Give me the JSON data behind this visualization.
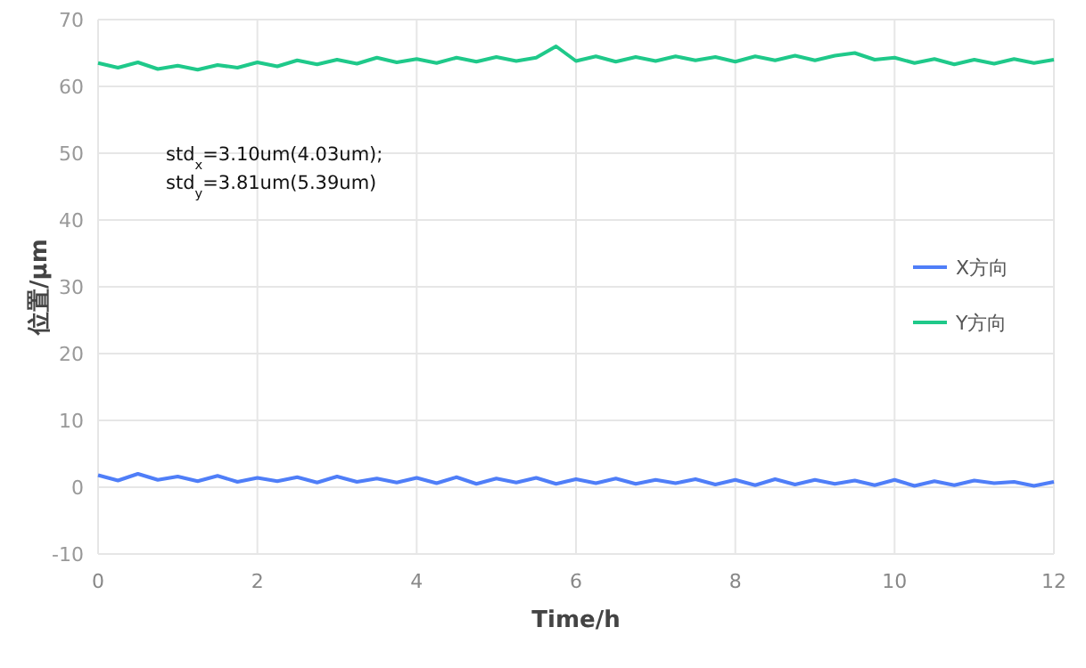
{
  "chart_data": {
    "type": "line",
    "xlabel": "Time/h",
    "ylabel": "位置/μm",
    "annotations": [
      "std$_{x}$=3.10um(4.03um);",
      "std$_{y}$=3.81um(5.39um)"
    ],
    "x": [
      0,
      0.25,
      0.5,
      0.75,
      1,
      1.25,
      1.5,
      1.75,
      2,
      2.25,
      2.5,
      2.75,
      3,
      3.25,
      3.5,
      3.75,
      4,
      4.25,
      4.5,
      4.75,
      5,
      5.25,
      5.5,
      5.75,
      6,
      6.25,
      6.5,
      6.75,
      7,
      7.25,
      7.5,
      7.75,
      8,
      8.25,
      8.5,
      8.75,
      9,
      9.25,
      9.5,
      9.75,
      10,
      10.25,
      10.5,
      10.75,
      11,
      11.25,
      11.5,
      11.75,
      12
    ],
    "series": [
      {
        "name": "X方向",
        "color": "#4f7ef8",
        "values": [
          1.8,
          1.0,
          2.0,
          1.1,
          1.6,
          0.9,
          1.7,
          0.8,
          1.4,
          0.9,
          1.5,
          0.7,
          1.6,
          0.8,
          1.3,
          0.7,
          1.4,
          0.6,
          1.5,
          0.5,
          1.3,
          0.7,
          1.4,
          0.5,
          1.2,
          0.6,
          1.3,
          0.5,
          1.1,
          0.6,
          1.2,
          0.4,
          1.1,
          0.3,
          1.2,
          0.4,
          1.1,
          0.5,
          1.0,
          0.3,
          1.1,
          0.2,
          0.9,
          0.3,
          1.0,
          0.6,
          0.8,
          0.2,
          0.8
        ]
      },
      {
        "name": "Y方向",
        "color": "#1fc98a",
        "values": [
          63.5,
          62.8,
          63.6,
          62.6,
          63.1,
          62.5,
          63.2,
          62.8,
          63.6,
          63.0,
          63.9,
          63.3,
          64.0,
          63.4,
          64.3,
          63.6,
          64.1,
          63.5,
          64.3,
          63.7,
          64.4,
          63.8,
          64.3,
          66.0,
          63.8,
          64.5,
          63.7,
          64.4,
          63.8,
          64.5,
          63.9,
          64.4,
          63.7,
          64.5,
          63.9,
          64.6,
          63.9,
          64.6,
          65.0,
          64.0,
          64.3,
          63.5,
          64.1,
          63.3,
          64.0,
          63.4,
          64.1,
          63.5,
          64.0
        ]
      }
    ],
    "xlim": [
      0,
      12
    ],
    "xticks": [
      0,
      2,
      4,
      6,
      8,
      10,
      12
    ],
    "ylim": [
      -10,
      70
    ],
    "yticks": [
      -10,
      0,
      10,
      20,
      30,
      40,
      50,
      60,
      70
    ],
    "grid": true,
    "legend": "right",
    "marker": "none",
    "line_style": "solid"
  }
}
